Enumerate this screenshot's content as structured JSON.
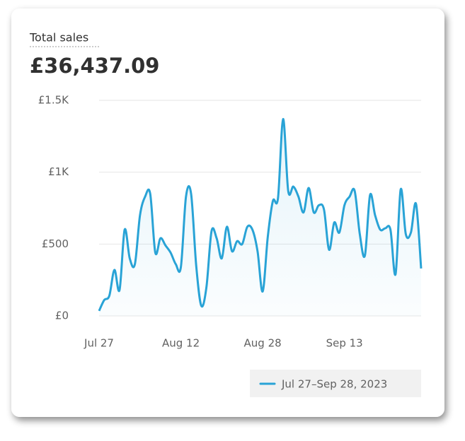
{
  "chart_data": {
    "type": "line",
    "title": "Total sales",
    "subtitle": "£36,437.09",
    "categories": [
      "Jul 27",
      null,
      null,
      null,
      null,
      null,
      null,
      null,
      null,
      null,
      null,
      null,
      null,
      null,
      null,
      null,
      "Aug 12",
      null,
      null,
      null,
      null,
      null,
      null,
      null,
      null,
      null,
      null,
      null,
      null,
      null,
      null,
      null,
      "Aug 28",
      null,
      null,
      null,
      null,
      null,
      null,
      null,
      null,
      null,
      null,
      null,
      null,
      null,
      null,
      null,
      "Sep 13",
      null,
      null,
      null,
      null,
      null,
      null,
      null,
      null,
      null,
      null,
      null,
      null,
      null,
      null,
      null
    ],
    "series": [
      {
        "name": "Jul 27–Sep 28, 2023",
        "color": "#29a3d6",
        "values": [
          35,
          110,
          140,
          320,
          180,
          600,
          400,
          360,
          700,
          830,
          850,
          440,
          540,
          490,
          440,
          360,
          340,
          830,
          850,
          350,
          70,
          200,
          590,
          540,
          400,
          620,
          450,
          520,
          500,
          620,
          600,
          450,
          170,
          550,
          800,
          820,
          1370,
          870,
          900,
          830,
          720,
          890,
          720,
          770,
          740,
          460,
          650,
          580,
          770,
          830,
          870,
          570,
          420,
          840,
          700,
          600,
          610,
          600,
          290,
          880,
          570,
          580,
          780,
          330
        ]
      }
    ],
    "ylim": [
      0,
      1500
    ],
    "yticks": [
      {
        "value": 0,
        "label": "£0"
      },
      {
        "value": 500,
        "label": "£500"
      },
      {
        "value": 1000,
        "label": "£1K"
      },
      {
        "value": 1500,
        "label": "£1.5K"
      }
    ],
    "grid": true
  }
}
